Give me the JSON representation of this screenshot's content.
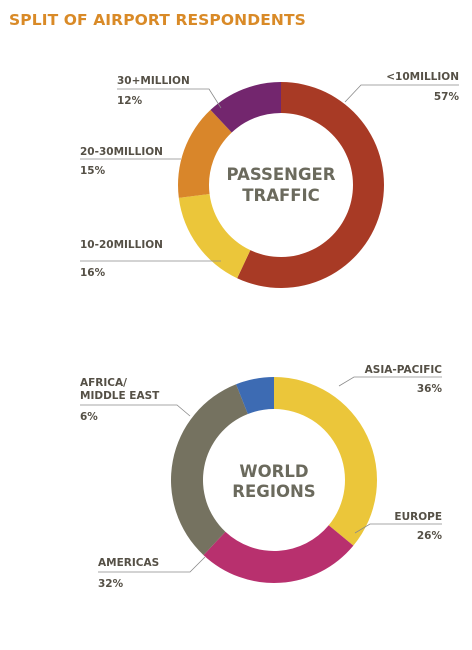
{
  "page_title": "SPLIT OF AIRPORT RESPONDENTS",
  "chart_data": [
    {
      "type": "pie",
      "center_text": [
        "PASSENGER",
        "TRAFFIC"
      ],
      "slices": [
        {
          "label": "<10MILLION",
          "value_label": "57%",
          "value": 57,
          "color": "#a83a25"
        },
        {
          "label": "10-20MILLION",
          "value_label": "16%",
          "value": 16,
          "color": "#ebc63a"
        },
        {
          "label": "20-30MILLION",
          "value_label": "15%",
          "value": 15,
          "color": "#d9862a"
        },
        {
          "label": "30+MILLION",
          "value_label": "12%",
          "value": 12,
          "color": "#73266e"
        }
      ]
    },
    {
      "type": "pie",
      "center_text": [
        "WORLD",
        "REGIONS"
      ],
      "slices": [
        {
          "label": "ASIA-PACIFIC",
          "value_label": "36%",
          "value": 36,
          "color": "#ebc63a"
        },
        {
          "label": "EUROPE",
          "value_label": "26%",
          "value": 26,
          "color": "#b8306e"
        },
        {
          "label": "AMERICAS",
          "value_label": "32%",
          "value": 32,
          "color": "#757260"
        },
        {
          "label": [
            "AFRICA/",
            "MIDDLE EAST"
          ],
          "value_label": "6%",
          "value": 6,
          "color": "#3d6bb3"
        }
      ]
    }
  ]
}
